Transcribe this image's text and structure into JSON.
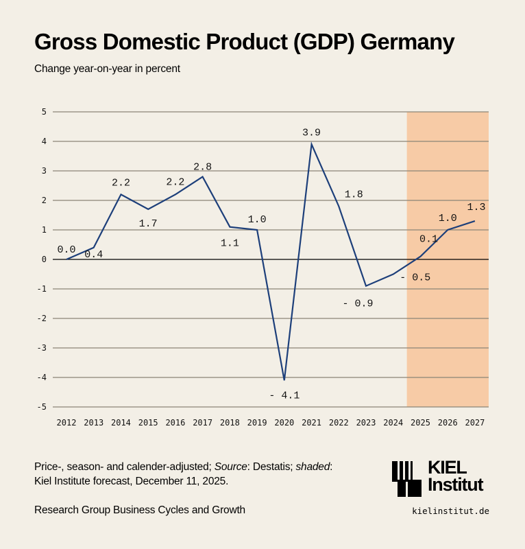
{
  "header": {
    "title": "Gross Domestic Product (GDP) Germany",
    "subtitle": "Change year-on-year in percent"
  },
  "chart_data": {
    "type": "line",
    "title": "Gross Domestic Product (GDP) Germany",
    "subtitle": "Change year-on-year in percent",
    "xlabel": "",
    "ylabel": "",
    "x": [
      "2012",
      "2013",
      "2014",
      "2015",
      "2016",
      "2017",
      "2018",
      "2019",
      "2020",
      "2021",
      "2022",
      "2023",
      "2024",
      "2025",
      "2026",
      "2027"
    ],
    "series": [
      {
        "name": "GDP change year-on-year (%)",
        "color": "#1d3f7a",
        "values": [
          0.0,
          0.4,
          2.2,
          1.7,
          2.2,
          2.8,
          1.1,
          1.0,
          -4.1,
          3.9,
          1.8,
          -0.9,
          -0.5,
          0.1,
          1.0,
          1.3
        ],
        "labels": [
          "0.0",
          "0.4",
          "2.2",
          "1.7",
          "2.2",
          "2.8",
          "1.1",
          "1.0",
          "- 4.1",
          "3.9",
          "1.8",
          "- 0.9",
          "- 0.5",
          "0.1",
          "1.0",
          "1.3"
        ]
      }
    ],
    "ylim": [
      -5,
      5
    ],
    "yticks": [
      "5",
      "4",
      "3",
      "2",
      "1",
      "0",
      "-1",
      "-2",
      "-3",
      "-4",
      "-5"
    ],
    "ytick_values": [
      5,
      4,
      3,
      2,
      1,
      0,
      -1,
      -2,
      -3,
      -4,
      -5
    ],
    "grid": true,
    "shaded_region": {
      "from": "2025",
      "to": "2027",
      "label": "Kiel Institute forecast",
      "color": "#f7cba6"
    },
    "colors": {
      "line": "#1d3f7a",
      "grid": "#8a8577",
      "zero": "#000000",
      "shade": "#f7cba6"
    }
  },
  "footer": {
    "note_part1": "Price-, season- and calender-adjusted; ",
    "note_source_label": "Source",
    "note_part2": ": Destatis; ",
    "note_shaded_label": "shaded",
    "note_part3": ":",
    "note_line2": "Kiel Institute forecast, December 11, 2025.",
    "research_group": "Research Group Business Cycles and Growth",
    "logo_line1": "KIEL",
    "logo_line2": "Institut",
    "website": "kielinstitut.de"
  }
}
